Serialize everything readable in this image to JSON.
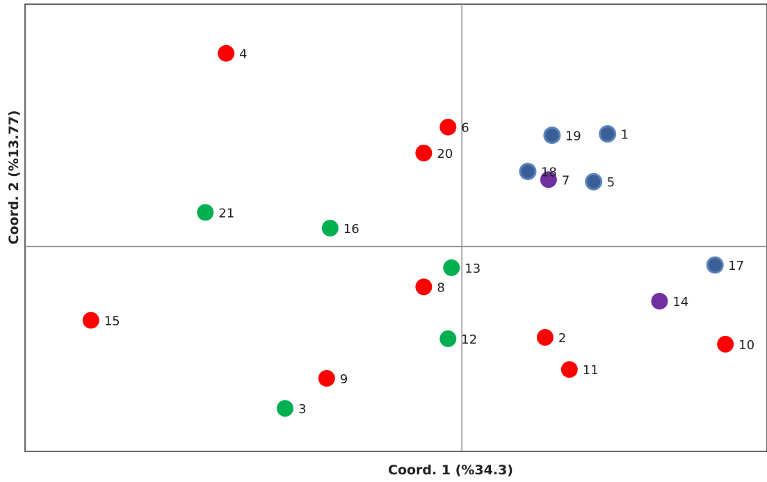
{
  "chart_data": {
    "type": "scatter",
    "title": "",
    "xlabel": "Coord. 1 (%34.3)",
    "ylabel": "Coord. 2 (%13.77)",
    "xlim": [
      -6.3,
      4.4
    ],
    "ylim": [
      -3.0,
      3.55
    ],
    "grid": false,
    "reference_lines": {
      "x": 0,
      "y": 0
    },
    "group_colors": {
      "red": "#ff0000",
      "green": "#00b050",
      "blue": "#3a5f94",
      "purple": "#7030a0"
    },
    "points": [
      {
        "label": "1",
        "x": 2.1,
        "y": 1.65,
        "group": "blue"
      },
      {
        "label": "2",
        "x": 1.2,
        "y": -1.33,
        "group": "red"
      },
      {
        "label": "3",
        "x": -2.55,
        "y": -2.37,
        "group": "green"
      },
      {
        "label": "4",
        "x": -3.4,
        "y": 2.83,
        "group": "red"
      },
      {
        "label": "5",
        "x": 1.9,
        "y": 0.95,
        "group": "blue"
      },
      {
        "label": "6",
        "x": -0.2,
        "y": 1.75,
        "group": "red"
      },
      {
        "label": "7",
        "x": 1.25,
        "y": 0.98,
        "group": "purple"
      },
      {
        "label": "8",
        "x": -0.55,
        "y": -0.59,
        "group": "red"
      },
      {
        "label": "9",
        "x": -1.95,
        "y": -1.93,
        "group": "red"
      },
      {
        "label": "10",
        "x": 3.8,
        "y": -1.43,
        "group": "red"
      },
      {
        "label": "11",
        "x": 1.55,
        "y": -1.8,
        "group": "red"
      },
      {
        "label": "12",
        "x": -0.2,
        "y": -1.35,
        "group": "green"
      },
      {
        "label": "13",
        "x": -0.15,
        "y": -0.31,
        "group": "green"
      },
      {
        "label": "14",
        "x": 2.85,
        "y": -0.8,
        "group": "purple"
      },
      {
        "label": "15",
        "x": -5.35,
        "y": -1.08,
        "group": "red"
      },
      {
        "label": "16",
        "x": -1.9,
        "y": 0.27,
        "group": "green"
      },
      {
        "label": "17",
        "x": 3.65,
        "y": -0.27,
        "group": "blue"
      },
      {
        "label": "18",
        "x": 0.95,
        "y": 1.1,
        "group": "blue"
      },
      {
        "label": "19",
        "x": 1.3,
        "y": 1.63,
        "group": "blue"
      },
      {
        "label": "20",
        "x": -0.55,
        "y": 1.37,
        "group": "red"
      },
      {
        "label": "21",
        "x": -3.7,
        "y": 0.5,
        "group": "green"
      }
    ]
  }
}
